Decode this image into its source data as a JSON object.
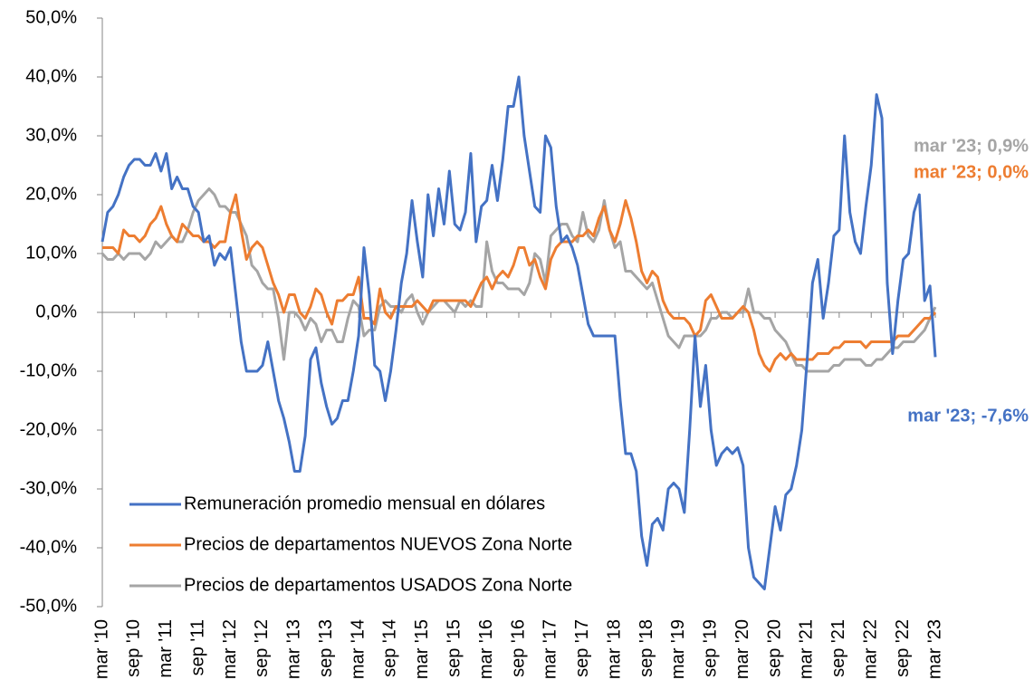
{
  "chart_data": {
    "type": "line",
    "categories": [
      "mar '10",
      null,
      null,
      null,
      null,
      null,
      "sep '10",
      null,
      null,
      null,
      null,
      null,
      "mar '11",
      null,
      null,
      null,
      null,
      null,
      "sep '11",
      null,
      null,
      null,
      null,
      null,
      "mar '12",
      null,
      null,
      null,
      null,
      null,
      "sep '12",
      null,
      null,
      null,
      null,
      null,
      "mar '13",
      null,
      null,
      null,
      null,
      null,
      "sep '13",
      null,
      null,
      null,
      null,
      null,
      "mar '14",
      null,
      null,
      null,
      null,
      null,
      "sep '14",
      null,
      null,
      null,
      null,
      null,
      "mar '15",
      null,
      null,
      null,
      null,
      null,
      "sep '15",
      null,
      null,
      null,
      null,
      null,
      "mar '16",
      null,
      null,
      null,
      null,
      null,
      "sep '16",
      null,
      null,
      null,
      null,
      null,
      "mar '17",
      null,
      null,
      null,
      null,
      null,
      "sep '17",
      null,
      null,
      null,
      null,
      null,
      "mar '18",
      null,
      null,
      null,
      null,
      null,
      "sep '18",
      null,
      null,
      null,
      null,
      null,
      "mar '19",
      null,
      null,
      null,
      null,
      null,
      "sep '19",
      null,
      null,
      null,
      null,
      null,
      "mar '20",
      null,
      null,
      null,
      null,
      null,
      "sep '20",
      null,
      null,
      null,
      null,
      null,
      "mar '21",
      null,
      null,
      null,
      null,
      null,
      "sep '21",
      null,
      null,
      null,
      null,
      null,
      "mar '22",
      null,
      null,
      null,
      null,
      null,
      "sep '22",
      null,
      null,
      null,
      null,
      null,
      "mar '23"
    ],
    "series": [
      {
        "name": "Remuneración promedio mensual en dólares",
        "color": "#4472c4",
        "values": [
          12,
          17,
          18,
          20,
          23,
          25,
          26,
          26,
          25,
          25,
          27,
          24,
          27,
          21,
          23,
          21,
          21,
          18,
          17,
          12,
          13,
          8,
          10,
          9,
          11,
          3,
          -5,
          -10,
          -10,
          -10,
          -9,
          -5,
          -10,
          -15,
          -18,
          -22,
          -27,
          -27,
          -21,
          -8,
          -6,
          -12,
          -16,
          -19,
          -18,
          -15,
          -15,
          -10,
          -4,
          11,
          3,
          -9,
          -10,
          -15,
          -10,
          -3,
          5,
          10,
          19,
          12,
          6,
          20,
          13,
          21,
          15,
          24,
          15,
          14,
          17,
          27,
          12,
          18,
          19,
          25,
          19,
          26,
          35,
          35,
          40,
          30,
          24,
          18,
          17,
          30,
          28,
          18,
          12,
          13,
          11,
          8,
          3,
          -2,
          -4,
          -4,
          -4,
          -4,
          -4,
          -15,
          -24,
          -24,
          -27,
          -38,
          -43,
          -36,
          -35,
          -37,
          -30,
          -29,
          -30,
          -34,
          -20,
          -4,
          -16,
          -9,
          -20,
          -26,
          -24,
          -23,
          -24,
          -23,
          -26,
          -40,
          -45,
          -46,
          -47,
          -40,
          -33,
          -37,
          -31,
          -30,
          -26,
          -20,
          -8,
          5,
          9,
          -1,
          5,
          13,
          14,
          30,
          17,
          12,
          10,
          18,
          25,
          37,
          33,
          5,
          -7,
          2,
          9,
          10,
          17,
          20,
          2,
          4.5,
          -7.6
        ],
        "value_labels": [
          null,
          null,
          null,
          null,
          null,
          null,
          null,
          null,
          null,
          null,
          null,
          null,
          null,
          null,
          null,
          null,
          null,
          null,
          null,
          null,
          null,
          null,
          null,
          null,
          null,
          null,
          null,
          null,
          null,
          null,
          null,
          null,
          null,
          null,
          null,
          null,
          null,
          null,
          null,
          null,
          null,
          null,
          null,
          null,
          null,
          null,
          null,
          null,
          null,
          null,
          null,
          null,
          null,
          null,
          null,
          null,
          null,
          null,
          null,
          null,
          null,
          null,
          null,
          null,
          null,
          null,
          null,
          null,
          null,
          null,
          null,
          null,
          null,
          null,
          null,
          null,
          null,
          null,
          null,
          null,
          null,
          null,
          null,
          null,
          null,
          null,
          null,
          null,
          null,
          null,
          null,
          null,
          null,
          null,
          null,
          null,
          null,
          null,
          null,
          null,
          null,
          null,
          null,
          null,
          null,
          null,
          null,
          null,
          null,
          null,
          null,
          null,
          null,
          null,
          null,
          null,
          null,
          null,
          null,
          null,
          null,
          null,
          null,
          null,
          null,
          null,
          null,
          null,
          null,
          null,
          null,
          null,
          null,
          null,
          null,
          null,
          null,
          null,
          null,
          null,
          null,
          null,
          null,
          null,
          null,
          null,
          null,
          null,
          null,
          null,
          null,
          null,
          null,
          null,
          null,
          null,
          "mar '23; -7,6%"
        ]
      },
      {
        "name": "Precios de departamentos NUEVOS Zona Norte",
        "color": "#ed7d31",
        "values": [
          11,
          11,
          11,
          10,
          14,
          13,
          13,
          12,
          13,
          15,
          16,
          18,
          15,
          13,
          12,
          15,
          14,
          13,
          13,
          12,
          12,
          11,
          12,
          12,
          17,
          20,
          14,
          9,
          11,
          12,
          11,
          8,
          5,
          3,
          0,
          3,
          3,
          0,
          -1,
          1,
          4,
          3,
          0,
          -2,
          2,
          2,
          3,
          3,
          6,
          -1,
          -1,
          -2,
          4,
          0,
          -1,
          1,
          1,
          1,
          1,
          2,
          1,
          0,
          2,
          2,
          2,
          2,
          2,
          2,
          2,
          1,
          3,
          5,
          6,
          4,
          6,
          7,
          6,
          8,
          11,
          11,
          8,
          9,
          6,
          4,
          9,
          11,
          12,
          12,
          12,
          13,
          13,
          14,
          13,
          16,
          18,
          14,
          12,
          15,
          19,
          16,
          12,
          7,
          5,
          7,
          6,
          2,
          0,
          -1,
          -1,
          -1,
          -2,
          -4,
          -3,
          2,
          3,
          1,
          -1,
          -1,
          -1,
          0,
          1,
          0,
          -3,
          -7,
          -9,
          -10,
          -8,
          -7,
          -8,
          -7,
          -8,
          -8,
          -8,
          -8,
          -7,
          -7,
          -7,
          -6,
          -6,
          -5,
          -5,
          -5,
          -5,
          -6,
          -5,
          -5,
          -5,
          -5,
          -5,
          -4,
          -4,
          -4,
          -3,
          -2,
          -1,
          -1,
          0
        ],
        "value_labels": [
          null,
          null,
          null,
          null,
          null,
          null,
          null,
          null,
          null,
          null,
          null,
          null,
          null,
          null,
          null,
          null,
          null,
          null,
          null,
          null,
          null,
          null,
          null,
          null,
          null,
          null,
          null,
          null,
          null,
          null,
          null,
          null,
          null,
          null,
          null,
          null,
          null,
          null,
          null,
          null,
          null,
          null,
          null,
          null,
          null,
          null,
          null,
          null,
          null,
          null,
          null,
          null,
          null,
          null,
          null,
          null,
          null,
          null,
          null,
          null,
          null,
          null,
          null,
          null,
          null,
          null,
          null,
          null,
          null,
          null,
          null,
          null,
          null,
          null,
          null,
          null,
          null,
          null,
          null,
          null,
          null,
          null,
          null,
          null,
          null,
          null,
          null,
          null,
          null,
          null,
          null,
          null,
          null,
          null,
          null,
          null,
          null,
          null,
          null,
          null,
          null,
          null,
          null,
          null,
          null,
          null,
          null,
          null,
          null,
          null,
          null,
          null,
          null,
          null,
          null,
          null,
          null,
          null,
          null,
          null,
          null,
          null,
          null,
          null,
          null,
          null,
          null,
          null,
          null,
          null,
          null,
          null,
          null,
          null,
          null,
          null,
          null,
          null,
          null,
          null,
          null,
          null,
          null,
          null,
          null,
          null,
          null,
          null,
          null,
          null,
          null,
          null,
          null,
          null,
          null,
          null,
          "mar '23; 0,0%"
        ]
      },
      {
        "name": "Precios de departamentos USADOS Zona Norte",
        "color": "#a5a5a5",
        "values": [
          10,
          9,
          9,
          10,
          9,
          10,
          10,
          10,
          9,
          10,
          12,
          11,
          12,
          13,
          12,
          12,
          14,
          17,
          19,
          20,
          21,
          20,
          18,
          18,
          17,
          17,
          15,
          13,
          8,
          7,
          5,
          4,
          4,
          -1,
          -8,
          0,
          0,
          -1,
          -3,
          -1,
          -2,
          -5,
          -3,
          -3,
          -5,
          -5,
          -1,
          2,
          1,
          -4,
          -3,
          -3,
          1,
          2,
          1,
          1,
          0,
          2,
          3,
          0,
          -2,
          0,
          1,
          2,
          2,
          1,
          0,
          2,
          1,
          2,
          1,
          1,
          12,
          7,
          5,
          5,
          4,
          4,
          4,
          3,
          5,
          10,
          9,
          5,
          13,
          14,
          15,
          15,
          13,
          12,
          17,
          13,
          12,
          14,
          19,
          14,
          11,
          12,
          7,
          7,
          6,
          5,
          4,
          5,
          2,
          -1,
          -4,
          -5,
          -6,
          -4,
          -4,
          -4,
          -4,
          -3,
          -1,
          -1,
          0,
          0,
          -1,
          0,
          0,
          4,
          0,
          0,
          -1,
          -1,
          -3,
          -4,
          -5,
          -7,
          -9,
          -9,
          -10,
          -10,
          -10,
          -10,
          -10,
          -9,
          -9,
          -8,
          -8,
          -8,
          -8,
          -9,
          -9,
          -8,
          -8,
          -7,
          -6,
          -6,
          -5,
          -5,
          -5,
          -4,
          -3,
          -1,
          0.9
        ],
        "value_labels": [
          null,
          null,
          null,
          null,
          null,
          null,
          null,
          null,
          null,
          null,
          null,
          null,
          null,
          null,
          null,
          null,
          null,
          null,
          null,
          null,
          null,
          null,
          null,
          null,
          null,
          null,
          null,
          null,
          null,
          null,
          null,
          null,
          null,
          null,
          null,
          null,
          null,
          null,
          null,
          null,
          null,
          null,
          null,
          null,
          null,
          null,
          null,
          null,
          null,
          null,
          null,
          null,
          null,
          null,
          null,
          null,
          null,
          null,
          null,
          null,
          null,
          null,
          null,
          null,
          null,
          null,
          null,
          null,
          null,
          null,
          null,
          null,
          null,
          null,
          null,
          null,
          null,
          null,
          null,
          null,
          null,
          null,
          null,
          null,
          null,
          null,
          null,
          null,
          null,
          null,
          null,
          null,
          null,
          null,
          null,
          null,
          null,
          null,
          null,
          null,
          null,
          null,
          null,
          null,
          null,
          null,
          null,
          null,
          null,
          null,
          null,
          null,
          null,
          null,
          null,
          null,
          null,
          null,
          null,
          null,
          null,
          null,
          null,
          null,
          null,
          null,
          null,
          null,
          null,
          null,
          null,
          null,
          null,
          null,
          null,
          null,
          null,
          null,
          null,
          null,
          null,
          null,
          null,
          null,
          null,
          null,
          null,
          null,
          null,
          null,
          null,
          null,
          null,
          null,
          null,
          null,
          "mar '23; 0,9%"
        ]
      }
    ],
    "ylim": [
      -50,
      50
    ],
    "yticks": [
      {
        "value": -50,
        "label": "-50,0%"
      },
      {
        "value": -40,
        "label": "-40,0%"
      },
      {
        "value": -30,
        "label": "-30,0%"
      },
      {
        "value": -20,
        "label": "-20,0%"
      },
      {
        "value": -10,
        "label": "-10,0%"
      },
      {
        "value": 0,
        "label": "0,0%"
      },
      {
        "value": 10,
        "label": "10,0%"
      },
      {
        "value": 20,
        "label": "20,0%"
      },
      {
        "value": 30,
        "label": "30,0%"
      },
      {
        "value": 40,
        "label": "40,0%"
      },
      {
        "value": 50,
        "label": "50,0%"
      }
    ],
    "grid": false,
    "legend": "lower left"
  }
}
